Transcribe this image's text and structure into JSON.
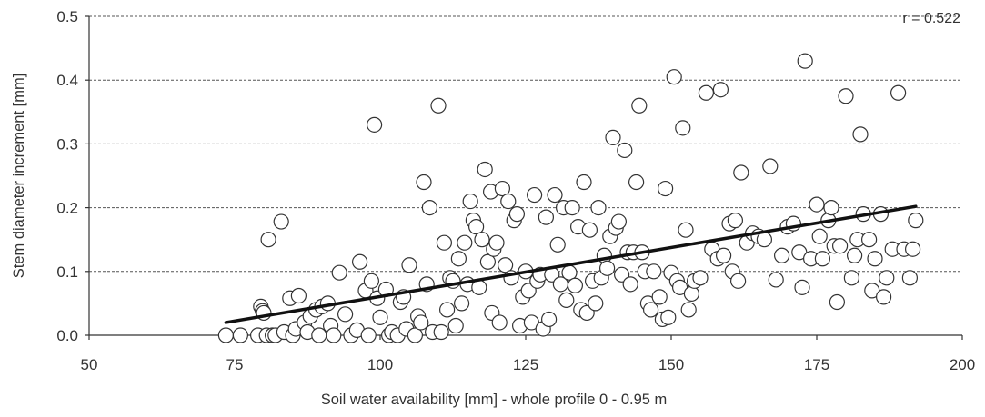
{
  "chart_data": {
    "type": "scatter",
    "title": "",
    "xlabel": "Soil water availability [mm]  - whole profile 0 - 0.95 m",
    "ylabel": "Stem diameter increment [mm]",
    "xlim": [
      50,
      200
    ],
    "ylim": [
      0,
      0.5
    ],
    "xticks": [
      50,
      75,
      100,
      125,
      150,
      175,
      200
    ],
    "xtick_labels": [
      "50",
      "75",
      "100",
      "125",
      "150",
      "175",
      "200"
    ],
    "yticks": [
      0,
      0.1,
      0.2,
      0.3,
      0.4,
      0.5
    ],
    "ytick_labels": [
      "0.0",
      "0.1",
      "0.2",
      "0.3",
      "0.4",
      "0.5"
    ],
    "grid": "horizontal dashed",
    "annotation": "r = 0.522",
    "trendline": {
      "x": [
        73.5,
        192
      ],
      "y": [
        0.02,
        0.202
      ]
    },
    "series": [
      {
        "marker": "open circle",
        "points": [
          [
            73.5,
            0
          ],
          [
            76,
            0
          ],
          [
            79,
            0
          ],
          [
            79.5,
            0.045
          ],
          [
            79.8,
            0.038
          ],
          [
            80,
            0.035
          ],
          [
            80.5,
            0
          ],
          [
            80.8,
            0.15
          ],
          [
            81.5,
            0
          ],
          [
            82,
            0
          ],
          [
            83,
            0.178
          ],
          [
            83.5,
            0.005
          ],
          [
            84.5,
            0.058
          ],
          [
            85,
            0
          ],
          [
            85.5,
            0.01
          ],
          [
            86,
            0.062
          ],
          [
            87,
            0.02
          ],
          [
            87.5,
            0.005
          ],
          [
            88,
            0.03
          ],
          [
            89,
            0.04
          ],
          [
            89.5,
            0
          ],
          [
            90,
            0.045
          ],
          [
            91,
            0.05
          ],
          [
            91.5,
            0.015
          ],
          [
            92,
            0
          ],
          [
            93,
            0.098
          ],
          [
            94,
            0.033
          ],
          [
            95,
            0
          ],
          [
            96,
            0.008
          ],
          [
            96.5,
            0.115
          ],
          [
            97.5,
            0.07
          ],
          [
            98,
            0
          ],
          [
            98.5,
            0.085
          ],
          [
            99,
            0.33
          ],
          [
            99.5,
            0.058
          ],
          [
            100,
            0.028
          ],
          [
            101,
            0.072
          ],
          [
            101.5,
            0
          ],
          [
            102,
            0.005
          ],
          [
            103,
            0
          ],
          [
            103.5,
            0.052
          ],
          [
            104,
            0.06
          ],
          [
            104.5,
            0.01
          ],
          [
            105,
            0.11
          ],
          [
            106,
            0
          ],
          [
            106.5,
            0.03
          ],
          [
            107,
            0.02
          ],
          [
            107.5,
            0.24
          ],
          [
            108,
            0.08
          ],
          [
            108.5,
            0.2
          ],
          [
            109,
            0.005
          ],
          [
            110,
            0.36
          ],
          [
            110.5,
            0.005
          ],
          [
            111,
            0.145
          ],
          [
            111.5,
            0.04
          ],
          [
            112,
            0.09
          ],
          [
            112.5,
            0.085
          ],
          [
            113,
            0.015
          ],
          [
            113.5,
            0.12
          ],
          [
            114,
            0.05
          ],
          [
            114.5,
            0.145
          ],
          [
            115,
            0.08
          ],
          [
            115.5,
            0.21
          ],
          [
            116,
            0.18
          ],
          [
            116.5,
            0.17
          ],
          [
            117,
            0.075
          ],
          [
            117.5,
            0.15
          ],
          [
            118,
            0.26
          ],
          [
            118.5,
            0.115
          ],
          [
            119,
            0.225
          ],
          [
            119.2,
            0.035
          ],
          [
            119.5,
            0.135
          ],
          [
            120,
            0.145
          ],
          [
            120.5,
            0.02
          ],
          [
            121,
            0.23
          ],
          [
            121.5,
            0.11
          ],
          [
            122,
            0.21
          ],
          [
            122.5,
            0.09
          ],
          [
            123,
            0.18
          ],
          [
            123.5,
            0.19
          ],
          [
            124,
            0.015
          ],
          [
            124.5,
            0.06
          ],
          [
            125,
            0.1
          ],
          [
            125.5,
            0.07
          ],
          [
            126,
            0.02
          ],
          [
            126.5,
            0.22
          ],
          [
            127,
            0.085
          ],
          [
            127.5,
            0.095
          ],
          [
            128,
            0.01
          ],
          [
            128.5,
            0.185
          ],
          [
            129,
            0.025
          ],
          [
            129.5,
            0.095
          ],
          [
            130,
            0.22
          ],
          [
            130.5,
            0.142
          ],
          [
            131,
            0.08
          ],
          [
            131.5,
            0.2
          ],
          [
            132,
            0.055
          ],
          [
            132.5,
            0.098
          ],
          [
            133,
            0.2
          ],
          [
            133.5,
            0.078
          ],
          [
            134,
            0.17
          ],
          [
            134.5,
            0.04
          ],
          [
            135,
            0.24
          ],
          [
            135.5,
            0.035
          ],
          [
            136,
            0.165
          ],
          [
            136.5,
            0.085
          ],
          [
            137,
            0.05
          ],
          [
            137.5,
            0.2
          ],
          [
            138,
            0.09
          ],
          [
            138.5,
            0.125
          ],
          [
            139,
            0.105
          ],
          [
            139.5,
            0.155
          ],
          [
            140,
            0.31
          ],
          [
            140.5,
            0.168
          ],
          [
            141,
            0.178
          ],
          [
            141.5,
            0.095
          ],
          [
            142,
            0.29
          ],
          [
            142.5,
            0.13
          ],
          [
            143,
            0.08
          ],
          [
            143.5,
            0.13
          ],
          [
            144,
            0.24
          ],
          [
            144.5,
            0.36
          ],
          [
            145,
            0.13
          ],
          [
            145.5,
            0.1
          ],
          [
            146,
            0.05
          ],
          [
            146.5,
            0.04
          ],
          [
            147,
            0.1
          ],
          [
            148,
            0.06
          ],
          [
            148.5,
            0.025
          ],
          [
            149,
            0.23
          ],
          [
            149.5,
            0.028
          ],
          [
            150,
            0.098
          ],
          [
            150.5,
            0.405
          ],
          [
            151,
            0.085
          ],
          [
            151.5,
            0.075
          ],
          [
            152,
            0.325
          ],
          [
            152.5,
            0.165
          ],
          [
            153,
            0.04
          ],
          [
            153.5,
            0.065
          ],
          [
            154,
            0.085
          ],
          [
            155,
            0.09
          ],
          [
            156,
            0.38
          ],
          [
            157,
            0.135
          ],
          [
            158,
            0.12
          ],
          [
            158.5,
            0.385
          ],
          [
            159,
            0.125
          ],
          [
            160,
            0.175
          ],
          [
            160.5,
            0.1
          ],
          [
            161,
            0.18
          ],
          [
            161.5,
            0.085
          ],
          [
            162,
            0.255
          ],
          [
            163,
            0.145
          ],
          [
            164,
            0.16
          ],
          [
            165,
            0.155
          ],
          [
            166,
            0.15
          ],
          [
            167,
            0.265
          ],
          [
            168,
            0.087
          ],
          [
            169,
            0.125
          ],
          [
            170,
            0.17
          ],
          [
            171,
            0.175
          ],
          [
            172,
            0.13
          ],
          [
            172.5,
            0.075
          ],
          [
            173,
            0.43
          ],
          [
            174,
            0.12
          ],
          [
            175,
            0.205
          ],
          [
            175.5,
            0.155
          ],
          [
            176,
            0.12
          ],
          [
            177,
            0.18
          ],
          [
            177.5,
            0.2
          ],
          [
            178,
            0.14
          ],
          [
            178.5,
            0.052
          ],
          [
            179,
            0.14
          ],
          [
            180,
            0.375
          ],
          [
            181,
            0.09
          ],
          [
            181.5,
            0.125
          ],
          [
            182,
            0.15
          ],
          [
            182.5,
            0.315
          ],
          [
            183,
            0.19
          ],
          [
            184,
            0.15
          ],
          [
            184.5,
            0.07
          ],
          [
            185,
            0.12
          ],
          [
            186,
            0.19
          ],
          [
            186.5,
            0.06
          ],
          [
            187,
            0.09
          ],
          [
            188,
            0.135
          ],
          [
            189,
            0.38
          ],
          [
            190,
            0.135
          ],
          [
            191,
            0.09
          ],
          [
            191.5,
            0.135
          ],
          [
            192,
            0.18
          ]
        ]
      }
    ]
  }
}
